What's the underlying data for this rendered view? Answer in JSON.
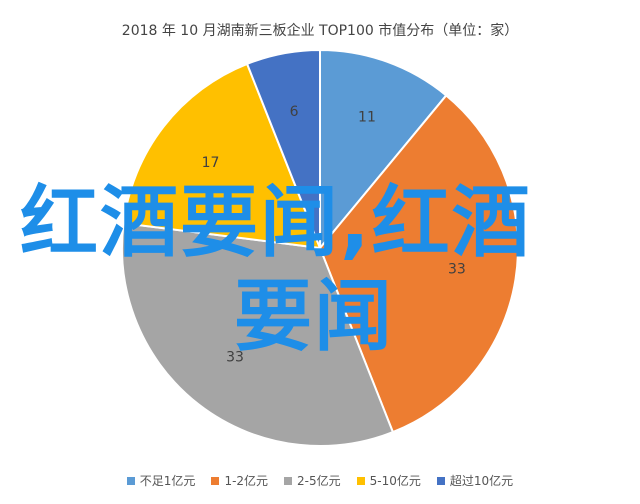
{
  "chart_data": {
    "type": "pie",
    "title": "2018 年 10 月湖南新三板企业 TOP100 市值分布（单位：家）",
    "categories": [
      "不足1亿元",
      "1-2亿元",
      "2-5亿元",
      "5-10亿元",
      "超过10亿元"
    ],
    "values": [
      11,
      33,
      33,
      17,
      6
    ],
    "colors": [
      "#5b9bd5",
      "#ed7d31",
      "#a5a5a5",
      "#ffc000",
      "#4472c4"
    ],
    "legend_position": "bottom"
  },
  "overlay": {
    "line1": "红酒要闻,红酒",
    "line2": "要闻",
    "color": "#1e8ee8"
  }
}
